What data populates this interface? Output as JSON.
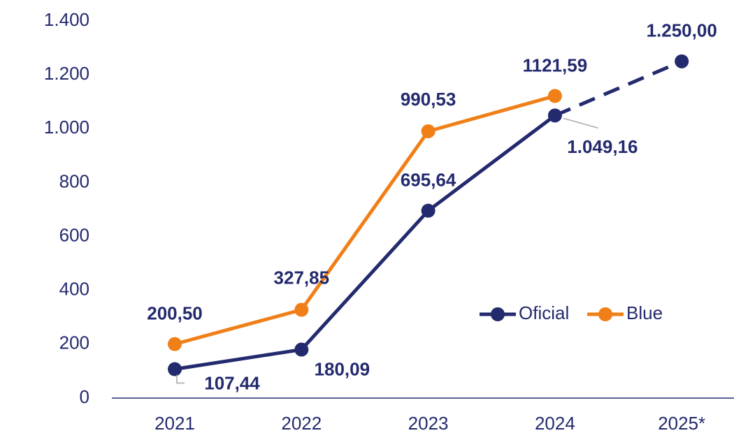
{
  "chart_data": {
    "type": "line",
    "categories": [
      "2021",
      "2022",
      "2023",
      "2024",
      "2025*"
    ],
    "series": [
      {
        "name": "Oficial",
        "color": "#232a6e",
        "dashed_after_index": 3,
        "values": [
          107.44,
          180.09,
          695.64,
          1049.16,
          1250.0
        ],
        "value_labels": [
          "107,44",
          "180,09",
          "695,64",
          "1.049,16",
          "1.250,00"
        ]
      },
      {
        "name": "Blue",
        "color": "#f07f17",
        "values": [
          200.5,
          327.85,
          990.53,
          1121.59,
          null
        ],
        "value_labels": [
          "200,50",
          "327,85",
          "990,53",
          "1121,59",
          null
        ]
      }
    ],
    "ylim": [
      0,
      1400
    ],
    "yticks": [
      0,
      200,
      400,
      600,
      800,
      {
        "value": 1000,
        "label": "1.000"
      },
      {
        "value": 1200,
        "label": "1.200"
      },
      {
        "value": 1400,
        "label": "1.400"
      }
    ],
    "grid": false,
    "legend": "right"
  }
}
